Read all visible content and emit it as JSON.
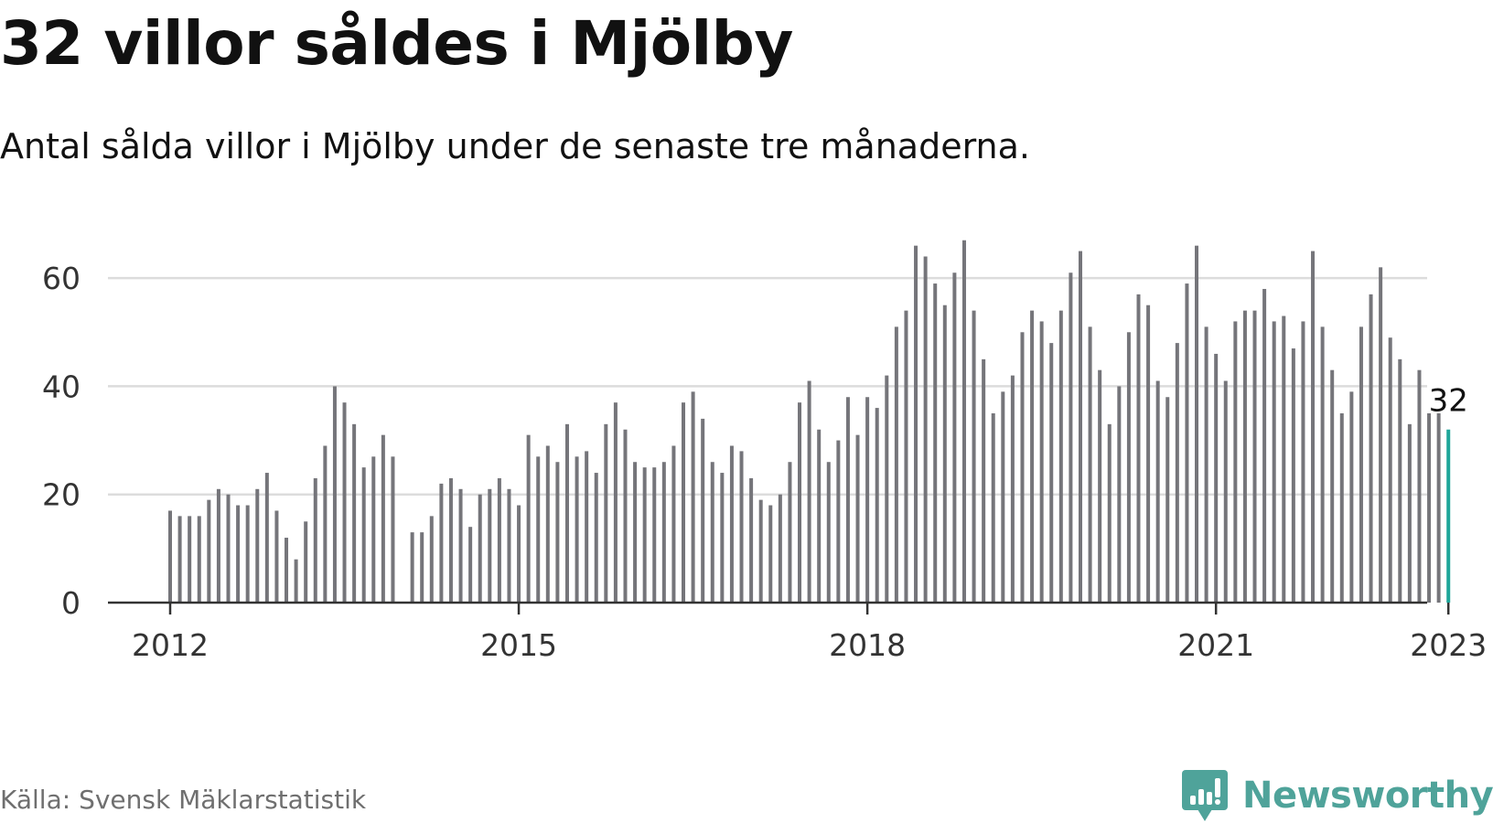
{
  "title": "32 villor såldes i Mjölby",
  "subtitle": "Antal sålda villor i Mjölby under de senaste tre månaderna.",
  "source": "Källa: Svensk Mäklarstatistik",
  "brand": {
    "name": "Newsworthy",
    "icon": "newsworthy-logo-icon",
    "color": "#4fa39a"
  },
  "colors": {
    "bar": "#75757a",
    "highlight": "#1fa69a",
    "grid": "#dcdcdc",
    "axis": "#333333"
  },
  "chart_data": {
    "type": "bar",
    "x_unit": "month",
    "x_start": "2012-01",
    "x_end": "2023-01",
    "ylim": [
      0,
      70
    ],
    "grid": true,
    "y_ticks": [
      {
        "value": 0,
        "label": "0"
      },
      {
        "value": 20,
        "label": "20"
      },
      {
        "value": 40,
        "label": "40"
      },
      {
        "value": 60,
        "label": "60"
      }
    ],
    "x_ticks": [
      {
        "date": "2012-01",
        "label": "2012"
      },
      {
        "date": "2015-01",
        "label": "2015"
      },
      {
        "date": "2018-01",
        "label": "2018"
      },
      {
        "date": "2021-01",
        "label": "2021"
      },
      {
        "date": "2023-01",
        "label": "2023"
      }
    ],
    "series": [
      {
        "values": [
          17,
          16,
          16,
          16,
          19,
          21,
          20,
          18,
          18,
          21,
          24,
          17,
          12,
          8,
          15,
          23,
          29,
          40,
          37,
          33,
          25,
          27,
          31,
          27,
          null,
          13,
          13,
          16,
          22,
          23,
          21,
          14,
          20,
          21,
          23,
          21,
          18,
          31,
          27,
          29,
          26,
          33,
          27,
          28,
          24,
          33,
          37,
          32,
          26,
          25,
          25,
          26,
          29,
          37,
          39,
          34,
          26,
          24,
          29,
          28,
          23,
          19,
          18,
          20,
          26,
          37,
          41,
          32,
          26,
          30,
          38,
          31,
          38,
          36,
          42,
          51,
          54,
          66,
          64,
          59,
          55,
          61,
          67,
          54,
          45,
          35,
          39,
          42,
          50,
          54,
          52,
          48,
          54,
          61,
          65,
          51,
          43,
          33,
          40,
          50,
          57,
          55,
          41,
          38,
          48,
          59,
          66,
          51,
          46,
          41,
          52,
          54,
          54,
          58,
          52,
          53,
          47,
          52,
          65,
          51,
          43,
          35,
          39,
          51,
          57,
          62,
          49,
          45,
          33,
          43,
          35,
          35,
          32
        ]
      }
    ],
    "highlight": {
      "date": "2023-01",
      "value": 32,
      "label": "32"
    }
  }
}
